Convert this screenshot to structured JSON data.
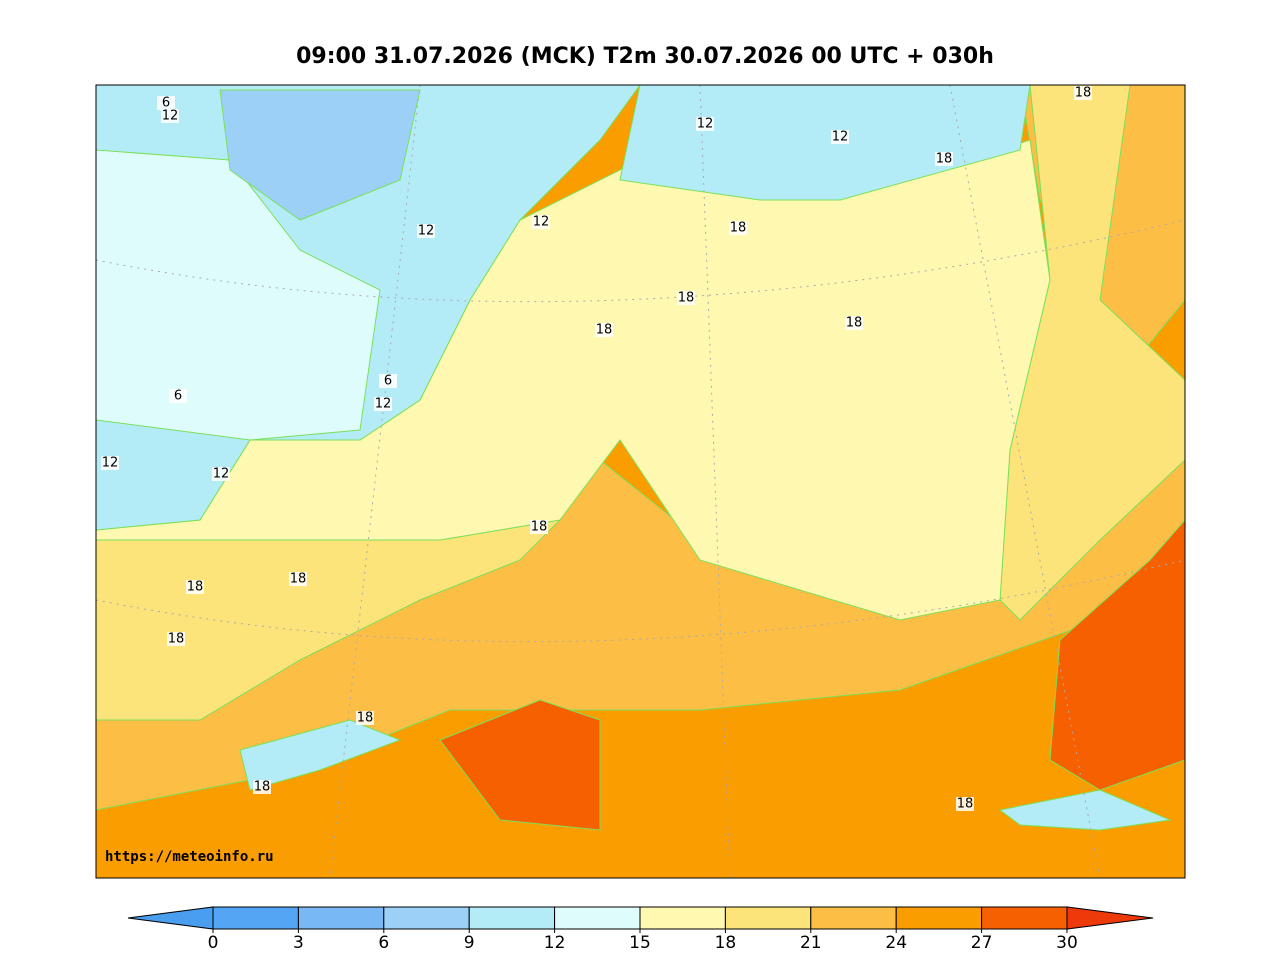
{
  "title": "09:00 31.07.2026 (MCK) T2m 30.07.2026 00 UTC + 030h",
  "source": "https://meteoinfo.ru",
  "map": {
    "contour_labels": [
      6,
      12,
      12,
      12,
      12,
      12,
      18,
      18,
      18,
      18,
      18,
      18,
      6,
      6,
      12,
      12,
      12,
      18,
      18,
      18,
      18,
      18,
      18,
      18
    ]
  },
  "colorbar": {
    "ticks": [
      0,
      3,
      6,
      9,
      12,
      15,
      18,
      21,
      24,
      27,
      30
    ],
    "colors": [
      "#4a9ef0",
      "#55a5f5",
      "#78b8f5",
      "#9dd0f7",
      "#b3ecf7",
      "#dffcfc",
      "#fff8b0",
      "#fde47a",
      "#fcbe45",
      "#fa9d00",
      "#f76000",
      "#ee3a0a"
    ]
  }
}
